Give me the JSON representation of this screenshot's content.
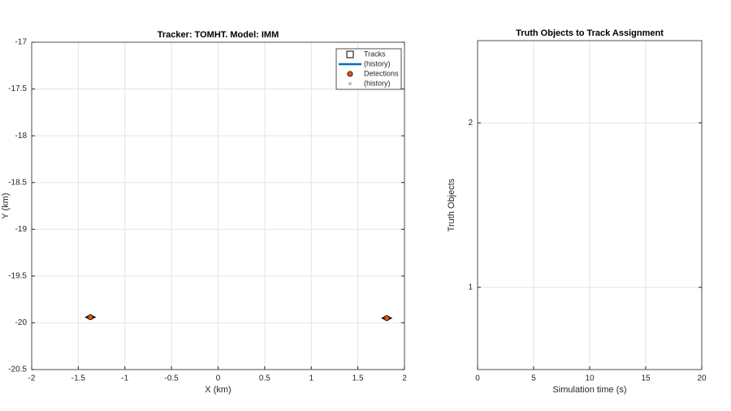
{
  "chart_data": [
    {
      "type": "scatter",
      "title": "Tracker: TOMHT. Model: IMM",
      "xlabel": "X (km)",
      "ylabel": "Y (km)",
      "xlim": [
        -2,
        2
      ],
      "xticks": [
        -2,
        -1.5,
        -1,
        -0.5,
        0,
        0.5,
        1,
        1.5,
        2
      ],
      "ylim": [
        -20.5,
        -17
      ],
      "yticks": [
        -20.5,
        -20,
        -19.5,
        -19,
        -18.5,
        -18,
        -17.5,
        -17
      ],
      "grid": true,
      "legend": "upper right",
      "series": [
        {
          "name": "Tracks",
          "marker": "square",
          "color": "#000000",
          "x": [
            -1.37,
            1.81
          ],
          "values": [
            -19.94,
            -19.95
          ]
        },
        {
          "name": "(history)",
          "marker": "line",
          "color": "#0072bd",
          "x": [],
          "values": []
        },
        {
          "name": "Detections",
          "marker": "circle",
          "color": "#d95319",
          "x": [
            -1.37,
            1.81
          ],
          "values": [
            -19.94,
            -19.95
          ]
        },
        {
          "name": "(history)",
          "marker": "dot",
          "color": "#bbbbbb",
          "x": [],
          "values": []
        }
      ]
    },
    {
      "type": "line",
      "title": "Truth Objects to Track Assignment",
      "xlabel": "Simulation time (s)",
      "ylabel": "Truth Objects",
      "xlim": [
        0,
        20
      ],
      "xticks": [
        0,
        5,
        10,
        15,
        20
      ],
      "ylim": [
        0.5,
        2.5
      ],
      "yticks": [
        1,
        2
      ],
      "grid": true,
      "series": []
    }
  ]
}
